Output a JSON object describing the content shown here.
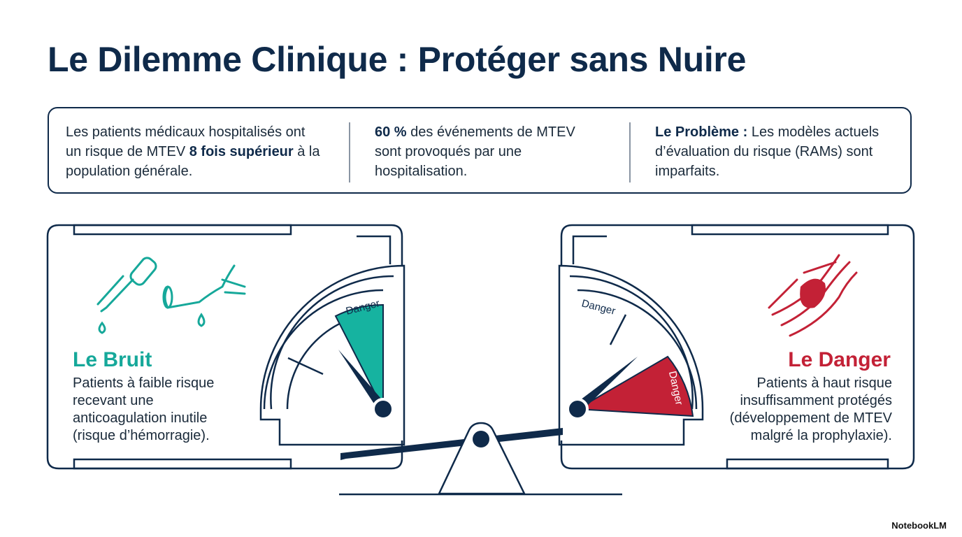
{
  "title": "Le Dilemme Clinique : Protéger sans Nuire",
  "facts": [
    {
      "parts": [
        "Les patients médicaux hospitalisés ont un risque de MTEV ",
        "8 fois supérieur",
        " à la population générale."
      ]
    },
    {
      "parts": [
        "60 %",
        " des événements de MTEV sont provoqués par une hospitalisation."
      ]
    },
    {
      "parts": [
        "Le Problème :",
        " Les modèles actuels d’évaluation du risque (RAMs) sont imparfaits."
      ]
    }
  ],
  "panels": {
    "left": {
      "title": "Le Bruit",
      "description": "Patients à faible risque recevant une anticoagulation inutile (risque d’hémorragie).",
      "gauge_label": "Danger"
    },
    "right": {
      "title": "Le Danger",
      "description": "Patients à haut risque insuffisamment protégés (développement de MTEV malgré la prophylaxie).",
      "gauge_label": "Danger"
    }
  },
  "brand": "NotebookLM"
}
